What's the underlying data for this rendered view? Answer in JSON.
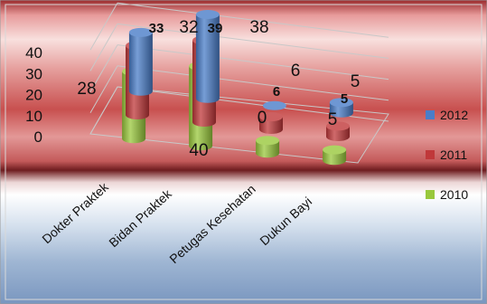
{
  "chart_data": {
    "type": "bar",
    "style": "3d-cylinder",
    "categories": [
      "Dokter Praktek",
      "Bidan Praktek",
      "Petugas Kesehatan",
      "Dukun Bayi"
    ],
    "series": [
      {
        "name": "2012",
        "color": "#4A7DC8",
        "values": [
          28,
          40,
          0,
          5
        ]
      },
      {
        "name": "2011",
        "color": "#C0383A",
        "values": [
          33,
          39,
          6,
          5
        ]
      },
      {
        "name": "2010",
        "color": "#99C83C",
        "values": [
          32,
          38,
          6,
          5
        ]
      }
    ],
    "y_ticks": [
      "0",
      "10",
      "20",
      "30",
      "40"
    ],
    "ylim": [
      0,
      40
    ],
    "grid": true,
    "legend_position": "right"
  }
}
